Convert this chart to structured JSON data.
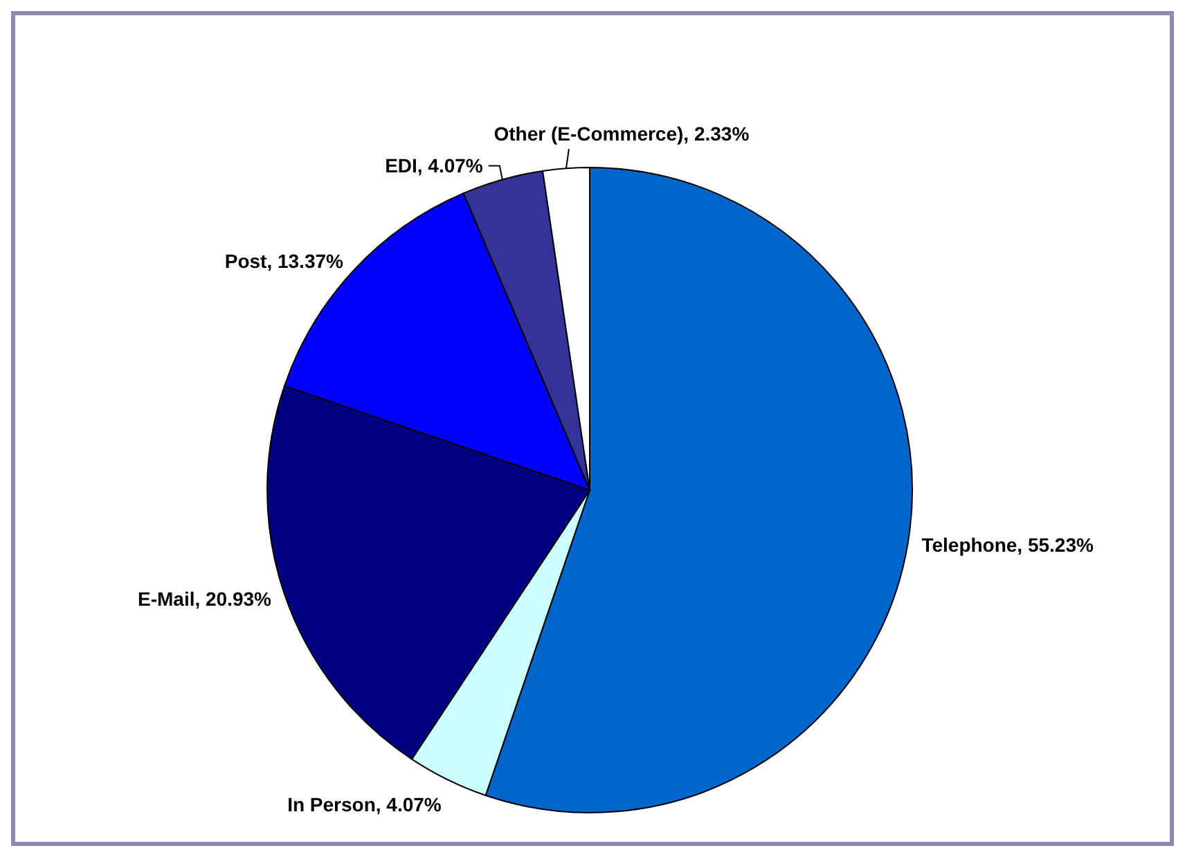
{
  "chart_data": {
    "type": "pie",
    "categories": [
      "Telephone",
      "In Person",
      "E-Mail",
      "Post",
      "EDI",
      "Other (E-Commerce)"
    ],
    "values": [
      55.23,
      4.07,
      20.93,
      13.37,
      4.07,
      2.33
    ],
    "colors": [
      "#0066cc",
      "#ccffff",
      "#000080",
      "#0000ff",
      "#333399",
      "#ffffff"
    ],
    "value_labels": [
      "55.23%",
      "4.07%",
      "20.93%",
      "13.37%",
      "4.07%",
      "2.33%"
    ]
  }
}
